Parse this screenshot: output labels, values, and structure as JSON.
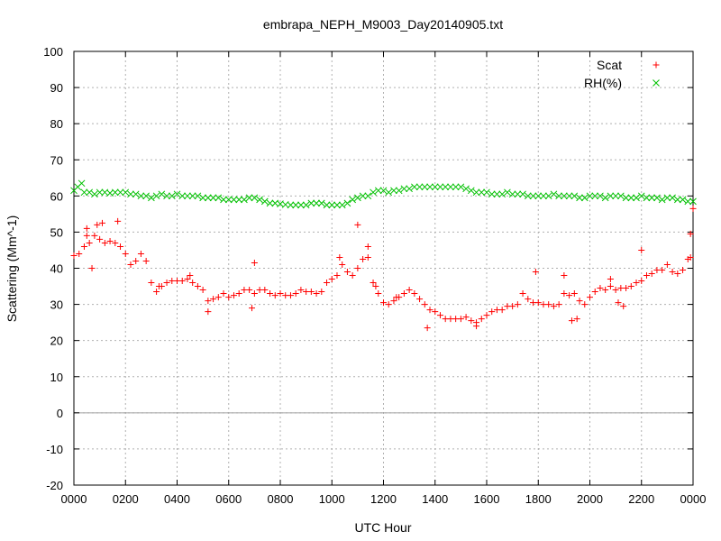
{
  "chart_data": {
    "type": "scatter",
    "title": "embrapa_NEPH_M9003_Day20140905.txt",
    "xlabel": "UTC Hour",
    "ylabel": "Scattering (Mm^-1)",
    "xlim": [
      0,
      24
    ],
    "ylim": [
      -20,
      100
    ],
    "grid": true,
    "legend_position": "top-right",
    "x_ticks": [
      {
        "value": 0,
        "label": "0000"
      },
      {
        "value": 2,
        "label": "0200"
      },
      {
        "value": 4,
        "label": "0400"
      },
      {
        "value": 6,
        "label": "0600"
      },
      {
        "value": 8,
        "label": "0800"
      },
      {
        "value": 10,
        "label": "1000"
      },
      {
        "value": 12,
        "label": "1200"
      },
      {
        "value": 14,
        "label": "1400"
      },
      {
        "value": 16,
        "label": "1600"
      },
      {
        "value": 18,
        "label": "1800"
      },
      {
        "value": 20,
        "label": "2000"
      },
      {
        "value": 22,
        "label": "2200"
      },
      {
        "value": 24,
        "label": "0000"
      }
    ],
    "y_ticks": [
      -20,
      -10,
      0,
      10,
      20,
      30,
      40,
      50,
      60,
      70,
      80,
      90,
      100
    ],
    "series": [
      {
        "name": "Scat",
        "marker": "+",
        "color": "#ff0000",
        "points": [
          [
            0.0,
            43.5
          ],
          [
            0.2,
            44
          ],
          [
            0.4,
            46
          ],
          [
            0.5,
            49
          ],
          [
            0.6,
            47
          ],
          [
            0.8,
            49
          ],
          [
            1.0,
            48
          ],
          [
            1.2,
            47
          ],
          [
            1.4,
            47.5
          ],
          [
            1.6,
            47
          ],
          [
            1.8,
            46
          ],
          [
            2.0,
            44
          ],
          [
            2.2,
            41
          ],
          [
            2.4,
            42
          ],
          [
            2.6,
            44
          ],
          [
            2.8,
            42
          ],
          [
            3.0,
            36
          ],
          [
            3.2,
            33.5
          ],
          [
            3.4,
            35
          ],
          [
            3.6,
            36
          ],
          [
            3.8,
            36.5
          ],
          [
            4.0,
            36.5
          ],
          [
            4.2,
            36.5
          ],
          [
            4.4,
            37
          ],
          [
            4.6,
            36
          ],
          [
            4.8,
            35
          ],
          [
            5.0,
            34
          ],
          [
            5.2,
            31
          ],
          [
            5.4,
            31.5
          ],
          [
            5.6,
            32
          ],
          [
            5.8,
            33
          ],
          [
            6.0,
            32
          ],
          [
            6.2,
            32.5
          ],
          [
            6.4,
            33
          ],
          [
            6.6,
            34
          ],
          [
            6.8,
            34
          ],
          [
            7.0,
            33
          ],
          [
            7.2,
            34
          ],
          [
            7.4,
            34
          ],
          [
            7.6,
            33
          ],
          [
            7.8,
            32.5
          ],
          [
            8.0,
            33
          ],
          [
            8.2,
            32.5
          ],
          [
            8.4,
            32.5
          ],
          [
            8.6,
            33
          ],
          [
            8.8,
            34
          ],
          [
            9.0,
            33.5
          ],
          [
            9.2,
            33.5
          ],
          [
            9.4,
            33
          ],
          [
            9.6,
            33.5
          ],
          [
            9.8,
            36
          ],
          [
            10.0,
            37
          ],
          [
            10.2,
            38
          ],
          [
            10.4,
            41
          ],
          [
            10.6,
            39
          ],
          [
            10.8,
            38
          ],
          [
            11.0,
            40
          ],
          [
            11.2,
            42.5
          ],
          [
            11.4,
            43
          ],
          [
            11.6,
            36
          ],
          [
            11.8,
            33
          ],
          [
            12.0,
            30.5
          ],
          [
            12.2,
            30
          ],
          [
            12.4,
            31
          ],
          [
            12.6,
            32
          ],
          [
            12.8,
            33
          ],
          [
            13.0,
            34
          ],
          [
            13.2,
            33
          ],
          [
            13.4,
            31.5
          ],
          [
            13.6,
            30
          ],
          [
            13.8,
            28.5
          ],
          [
            14.0,
            28
          ],
          [
            14.2,
            27
          ],
          [
            14.4,
            26
          ],
          [
            14.6,
            26
          ],
          [
            14.8,
            26
          ],
          [
            15.0,
            26
          ],
          [
            15.2,
            26.5
          ],
          [
            15.4,
            25.5
          ],
          [
            15.6,
            25
          ],
          [
            15.8,
            26
          ],
          [
            16.0,
            27
          ],
          [
            16.2,
            28
          ],
          [
            16.4,
            28.5
          ],
          [
            16.6,
            28.5
          ],
          [
            16.8,
            29.5
          ],
          [
            17.0,
            29.5
          ],
          [
            17.2,
            30
          ],
          [
            17.4,
            33
          ],
          [
            17.6,
            31.5
          ],
          [
            17.8,
            30.5
          ],
          [
            18.0,
            30.5
          ],
          [
            18.2,
            30
          ],
          [
            18.4,
            30
          ],
          [
            18.6,
            29.5
          ],
          [
            18.8,
            30
          ],
          [
            19.0,
            33
          ],
          [
            19.2,
            32.5
          ],
          [
            19.4,
            33
          ],
          [
            19.6,
            31
          ],
          [
            19.8,
            30
          ],
          [
            20.0,
            32
          ],
          [
            20.2,
            33.5
          ],
          [
            20.4,
            34.5
          ],
          [
            20.6,
            34
          ],
          [
            20.8,
            35
          ],
          [
            21.0,
            34
          ],
          [
            21.2,
            34.5
          ],
          [
            21.4,
            34.5
          ],
          [
            21.6,
            35
          ],
          [
            21.8,
            36
          ],
          [
            22.0,
            36.5
          ],
          [
            22.2,
            38
          ],
          [
            22.4,
            38.5
          ],
          [
            22.6,
            39.5
          ],
          [
            22.8,
            39.5
          ],
          [
            23.0,
            41
          ],
          [
            23.2,
            39
          ],
          [
            23.4,
            38.5
          ],
          [
            23.6,
            39.5
          ],
          [
            23.8,
            42.5
          ],
          [
            23.9,
            43
          ],
          [
            24.0,
            56.5
          ],
          [
            0.5,
            51
          ],
          [
            0.7,
            40
          ],
          [
            0.9,
            52
          ],
          [
            1.7,
            53
          ],
          [
            1.1,
            52.5
          ],
          [
            11.0,
            52
          ],
          [
            10.3,
            43
          ],
          [
            11.4,
            46
          ],
          [
            7.0,
            41.5
          ],
          [
            6.9,
            29
          ],
          [
            5.2,
            28
          ],
          [
            13.7,
            23.5
          ],
          [
            21.3,
            29.5
          ],
          [
            19.5,
            26
          ],
          [
            19.3,
            25.5
          ],
          [
            21.1,
            30.5
          ],
          [
            17.9,
            39
          ],
          [
            20.8,
            37
          ],
          [
            22.0,
            45
          ],
          [
            19.0,
            38
          ],
          [
            23.9,
            49.5
          ],
          [
            11.7,
            35
          ],
          [
            15.6,
            24
          ],
          [
            12.5,
            32
          ],
          [
            3.3,
            35
          ],
          [
            4.5,
            38
          ]
        ]
      },
      {
        "name": "RH(%)",
        "marker": "x",
        "color": "#00c000",
        "points": [
          [
            0.0,
            61.5
          ],
          [
            0.15,
            62.5
          ],
          [
            0.3,
            63.5
          ],
          [
            0.4,
            61
          ],
          [
            0.6,
            61
          ],
          [
            0.8,
            60.5
          ],
          [
            1.0,
            61
          ],
          [
            1.2,
            61
          ],
          [
            1.4,
            60.8
          ],
          [
            1.6,
            61
          ],
          [
            1.8,
            61
          ],
          [
            2.0,
            61
          ],
          [
            2.2,
            60.5
          ],
          [
            2.4,
            60.5
          ],
          [
            2.6,
            60
          ],
          [
            2.8,
            60
          ],
          [
            3.0,
            59.5
          ],
          [
            3.2,
            60
          ],
          [
            3.4,
            60.5
          ],
          [
            3.6,
            60
          ],
          [
            3.8,
            60
          ],
          [
            4.0,
            60.5
          ],
          [
            4.2,
            60
          ],
          [
            4.4,
            60
          ],
          [
            4.6,
            60
          ],
          [
            4.8,
            60
          ],
          [
            5.0,
            59.5
          ],
          [
            5.2,
            59.5
          ],
          [
            5.4,
            59.5
          ],
          [
            5.6,
            59.5
          ],
          [
            5.8,
            59
          ],
          [
            6.0,
            59
          ],
          [
            6.2,
            59
          ],
          [
            6.4,
            59
          ],
          [
            6.6,
            59
          ],
          [
            6.8,
            59.5
          ],
          [
            7.0,
            59.5
          ],
          [
            7.2,
            59
          ],
          [
            7.4,
            58.5
          ],
          [
            7.6,
            58
          ],
          [
            7.8,
            58
          ],
          [
            8.0,
            57.8
          ],
          [
            8.2,
            57.6
          ],
          [
            8.4,
            57.5
          ],
          [
            8.6,
            57.5
          ],
          [
            8.8,
            57.5
          ],
          [
            9.0,
            57.5
          ],
          [
            9.2,
            58
          ],
          [
            9.4,
            58
          ],
          [
            9.6,
            58
          ],
          [
            9.8,
            57.5
          ],
          [
            10.0,
            57.5
          ],
          [
            10.2,
            57.5
          ],
          [
            10.4,
            57.5
          ],
          [
            10.6,
            58
          ],
          [
            10.8,
            59
          ],
          [
            11.0,
            59.5
          ],
          [
            11.2,
            60
          ],
          [
            11.4,
            60
          ],
          [
            11.6,
            61
          ],
          [
            11.8,
            61.5
          ],
          [
            12.0,
            61.5
          ],
          [
            12.2,
            61
          ],
          [
            12.4,
            61.5
          ],
          [
            12.6,
            61.5
          ],
          [
            12.8,
            62
          ],
          [
            13.0,
            62
          ],
          [
            13.2,
            62.5
          ],
          [
            13.4,
            62.5
          ],
          [
            13.6,
            62.5
          ],
          [
            13.8,
            62.5
          ],
          [
            14.0,
            62.5
          ],
          [
            14.2,
            62.5
          ],
          [
            14.4,
            62.5
          ],
          [
            14.6,
            62.5
          ],
          [
            14.8,
            62.5
          ],
          [
            15.0,
            62.5
          ],
          [
            15.2,
            62
          ],
          [
            15.4,
            61.5
          ],
          [
            15.6,
            61
          ],
          [
            15.8,
            61
          ],
          [
            16.0,
            61
          ],
          [
            16.2,
            60.5
          ],
          [
            16.4,
            60.5
          ],
          [
            16.6,
            60.5
          ],
          [
            16.8,
            61
          ],
          [
            17.0,
            60.5
          ],
          [
            17.2,
            60.5
          ],
          [
            17.4,
            60.5
          ],
          [
            17.6,
            60
          ],
          [
            17.8,
            60
          ],
          [
            18.0,
            60
          ],
          [
            18.2,
            60
          ],
          [
            18.4,
            60
          ],
          [
            18.6,
            60.5
          ],
          [
            18.8,
            60
          ],
          [
            19.0,
            60
          ],
          [
            19.2,
            60
          ],
          [
            19.4,
            60
          ],
          [
            19.6,
            59.5
          ],
          [
            19.8,
            59.5
          ],
          [
            20.0,
            60
          ],
          [
            20.2,
            60
          ],
          [
            20.4,
            60
          ],
          [
            20.6,
            59.5
          ],
          [
            20.8,
            60
          ],
          [
            21.0,
            60
          ],
          [
            21.2,
            60
          ],
          [
            21.4,
            59.5
          ],
          [
            21.6,
            59.5
          ],
          [
            21.8,
            59.5
          ],
          [
            22.0,
            60
          ],
          [
            22.2,
            59.5
          ],
          [
            22.4,
            59.5
          ],
          [
            22.6,
            59.5
          ],
          [
            22.8,
            59
          ],
          [
            23.0,
            59.5
          ],
          [
            23.2,
            59.5
          ],
          [
            23.4,
            59
          ],
          [
            23.6,
            59
          ],
          [
            23.8,
            58.5
          ],
          [
            24.0,
            58.5
          ]
        ]
      }
    ]
  }
}
